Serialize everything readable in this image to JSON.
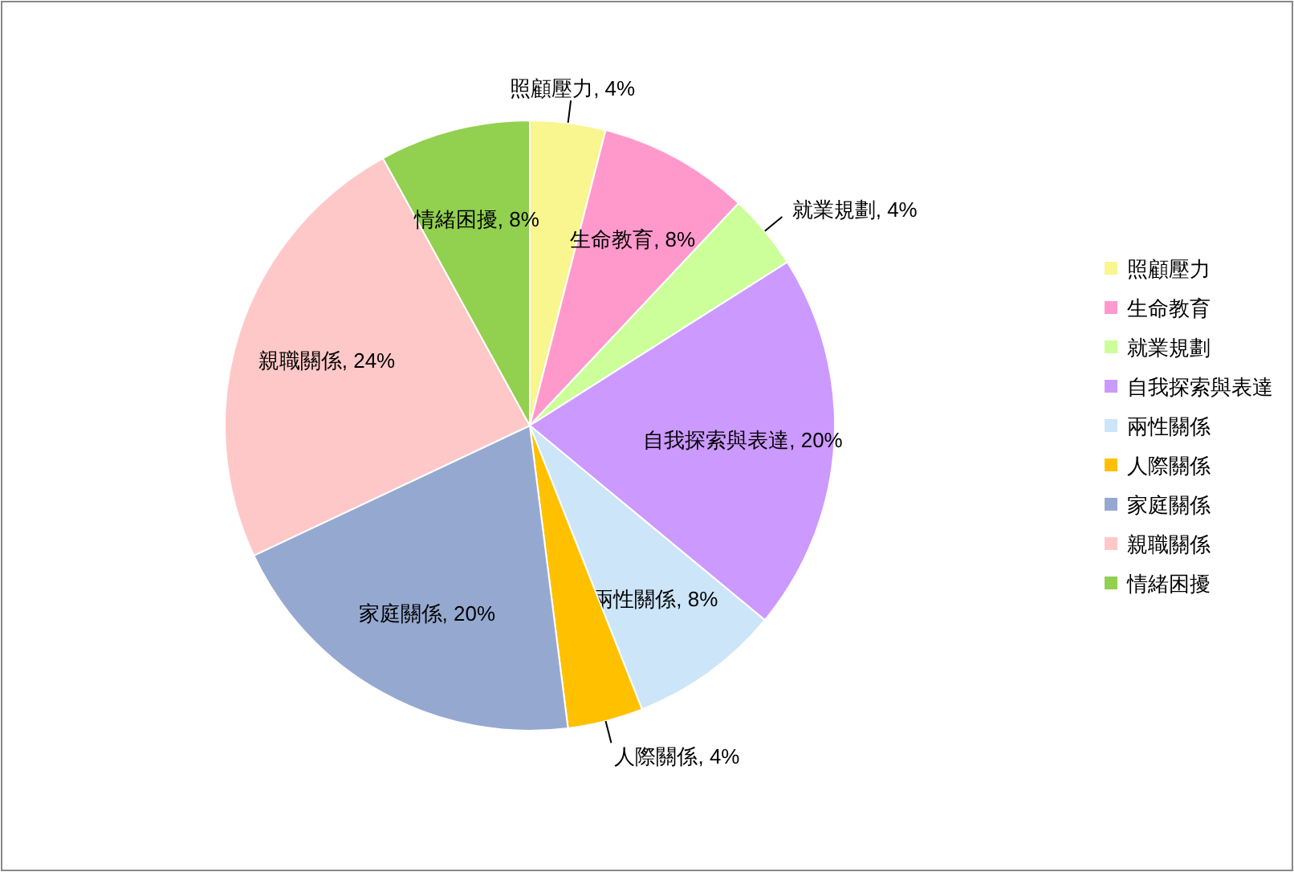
{
  "chart_data": {
    "type": "pie",
    "categories": [
      "照顧壓力",
      "生命教育",
      "就業規劃",
      "自我探索與表達",
      "兩性關係",
      "人際關係",
      "家庭關係",
      "親職關係",
      "情緒困擾"
    ],
    "values": [
      4,
      8,
      4,
      20,
      8,
      4,
      20,
      24,
      8
    ],
    "colors": [
      "#f9f58f",
      "#ff99cc",
      "#ccff99",
      "#cc99ff",
      "#cce5f9",
      "#ffc000",
      "#95a9d0",
      "#ffc8c8",
      "#92d050"
    ],
    "value_labels": [
      "照顧壓力, 4%",
      "生命教育, 8%",
      "就業規劃, 4%",
      "自我探索與表達, 20%",
      "兩性關係, 8%",
      "人際關係, 4%",
      "家庭關係, 20%",
      "親職關係, 24%",
      "情緒困擾, 8%"
    ],
    "legend": "right"
  }
}
